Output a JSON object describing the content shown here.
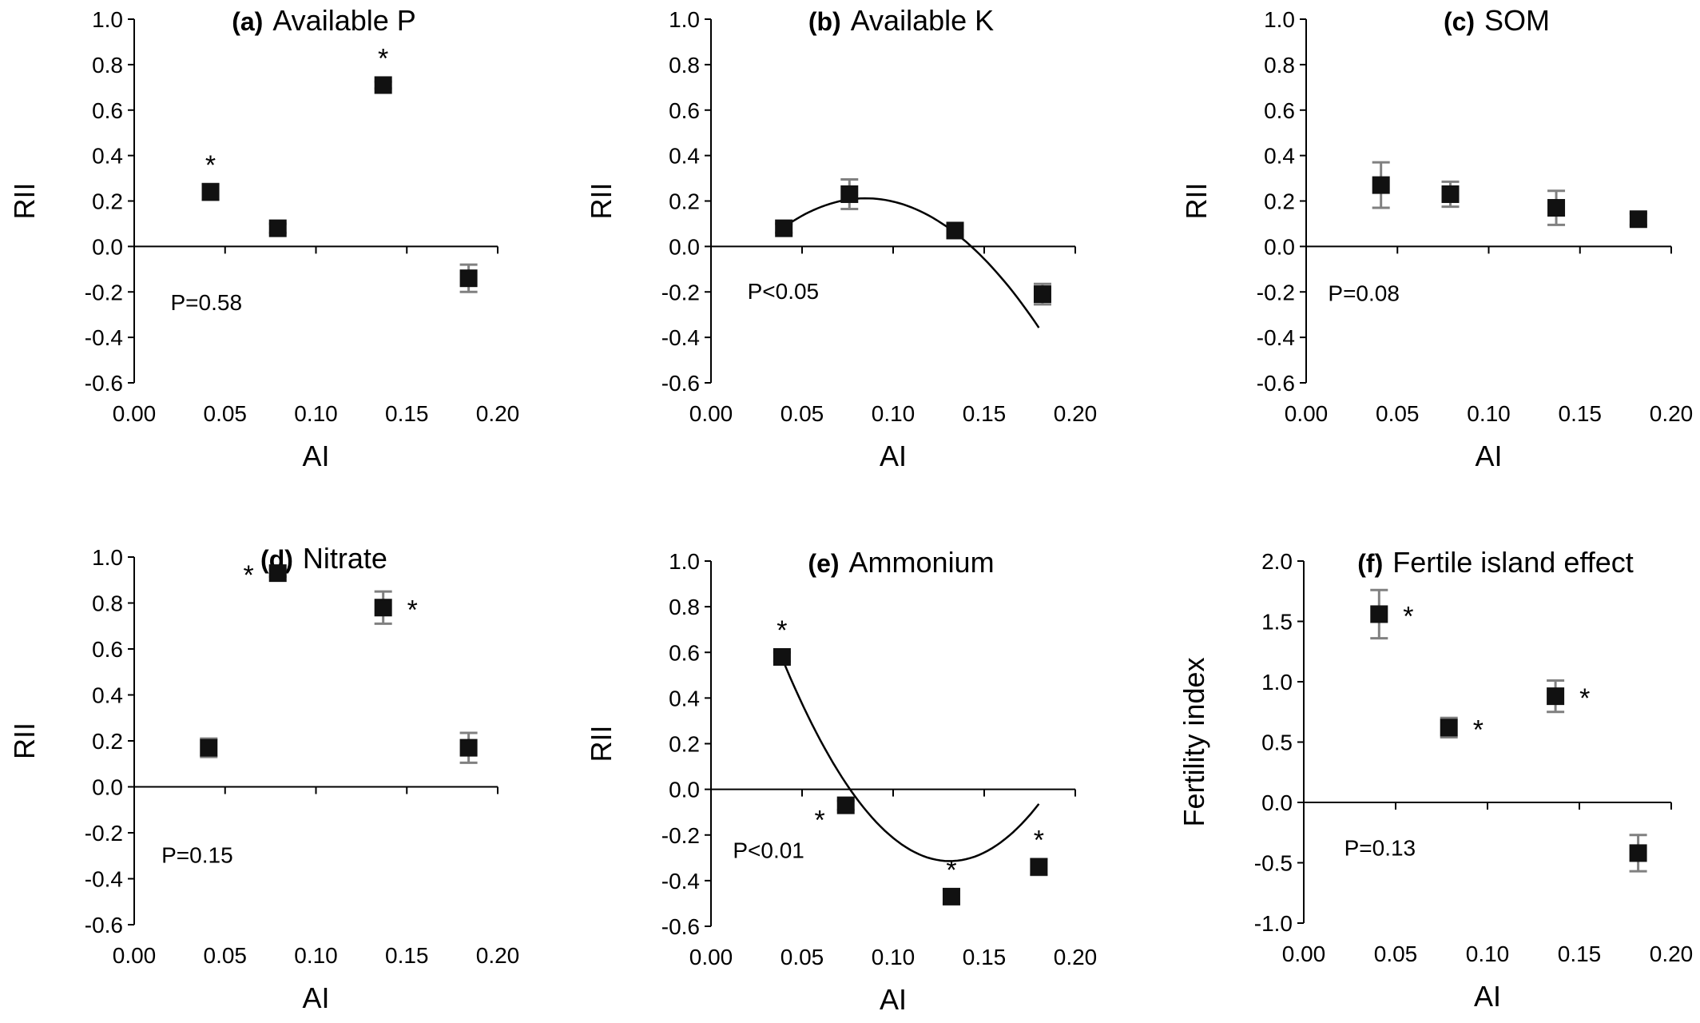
{
  "chart_data": [
    {
      "type": "scatter",
      "title_id": "(a)",
      "title": "Available P",
      "xlabel": "AI",
      "ylabel": "RII",
      "xlim": [
        0,
        0.2
      ],
      "ylim": [
        -0.6,
        1.0
      ],
      "xticks": [
        "0.00",
        "0.05",
        "0.10",
        "0.15",
        "0.20"
      ],
      "yticks": [
        "-0.6",
        "-0.4",
        "-0.2",
        "0.0",
        "0.2",
        "0.4",
        "0.6",
        "0.8",
        "1.0"
      ],
      "points": [
        {
          "x": 0.042,
          "y": 0.24,
          "err": 0.035,
          "star": "*",
          "star_pos": "above"
        },
        {
          "x": 0.079,
          "y": 0.08,
          "err": 0.02,
          "star": "",
          "star_pos": ""
        },
        {
          "x": 0.137,
          "y": 0.71,
          "err": 0.015,
          "star": "*",
          "star_pos": "above"
        },
        {
          "x": 0.184,
          "y": -0.14,
          "err": 0.06,
          "star": "",
          "star_pos": ""
        }
      ],
      "fit": null,
      "p_text": "P=0.58",
      "p_pos": [
        0.02,
        -0.28
      ]
    },
    {
      "type": "scatter",
      "title_id": "(b)",
      "title": "Available K",
      "xlabel": "AI",
      "ylabel": "RII",
      "xlim": [
        0,
        0.2
      ],
      "ylim": [
        -0.6,
        1.0
      ],
      "xticks": [
        "0.00",
        "0.05",
        "0.10",
        "0.15",
        "0.20"
      ],
      "yticks": [
        "-0.6",
        "-0.4",
        "-0.2",
        "0.0",
        "0.2",
        "0.4",
        "0.6",
        "0.8",
        "1.0"
      ],
      "points": [
        {
          "x": 0.04,
          "y": 0.08,
          "err": 0.02,
          "star": "",
          "star_pos": ""
        },
        {
          "x": 0.076,
          "y": 0.23,
          "err": 0.065,
          "star": "",
          "star_pos": ""
        },
        {
          "x": 0.134,
          "y": 0.07,
          "err": 0.02,
          "star": "",
          "star_pos": ""
        },
        {
          "x": 0.182,
          "y": -0.21,
          "err": 0.045,
          "star": "",
          "star_pos": ""
        }
      ],
      "fit": {
        "x_from": 0.04,
        "x_to": 0.18,
        "coef": [
          -0.2425,
          10.7,
          -63.0
        ]
      },
      "p_text": "P<0.05",
      "p_pos": [
        0.02,
        -0.23
      ]
    },
    {
      "type": "scatter",
      "title_id": "(c)",
      "title": "SOM",
      "xlabel": "AI",
      "ylabel": "RII",
      "xlim": [
        0,
        0.2
      ],
      "ylim": [
        -0.6,
        1.0
      ],
      "xticks": [
        "0.00",
        "0.05",
        "0.10",
        "0.15",
        "0.20"
      ],
      "yticks": [
        "-0.6",
        "-0.4",
        "-0.2",
        "0.0",
        "0.2",
        "0.4",
        "0.6",
        "0.8",
        "1.0"
      ],
      "points": [
        {
          "x": 0.041,
          "y": 0.27,
          "err": 0.1,
          "star": "",
          "star_pos": ""
        },
        {
          "x": 0.079,
          "y": 0.23,
          "err": 0.055,
          "star": "",
          "star_pos": ""
        },
        {
          "x": 0.137,
          "y": 0.17,
          "err": 0.075,
          "star": "",
          "star_pos": ""
        },
        {
          "x": 0.182,
          "y": 0.12,
          "err": 0.025,
          "star": "",
          "star_pos": ""
        }
      ],
      "fit": null,
      "p_text": "P=0.08",
      "p_pos": [
        0.012,
        -0.24
      ]
    },
    {
      "type": "scatter",
      "title_id": "(d)",
      "title": "Nitrate",
      "xlabel": "AI",
      "ylabel": "RII",
      "xlim": [
        0,
        0.2
      ],
      "ylim": [
        -0.6,
        1.0
      ],
      "xticks": [
        "0.00",
        "0.05",
        "0.10",
        "0.15",
        "0.20"
      ],
      "yticks": [
        "-0.6",
        "-0.4",
        "-0.2",
        "0.0",
        "0.2",
        "0.4",
        "0.6",
        "0.8",
        "1.0"
      ],
      "points": [
        {
          "x": 0.041,
          "y": 0.17,
          "err": 0.04,
          "star": "",
          "star_pos": ""
        },
        {
          "x": 0.079,
          "y": 0.93,
          "err": 0.015,
          "star": "*",
          "star_pos": "left"
        },
        {
          "x": 0.137,
          "y": 0.78,
          "err": 0.07,
          "star": "*",
          "star_pos": "right"
        },
        {
          "x": 0.184,
          "y": 0.17,
          "err": 0.065,
          "star": "",
          "star_pos": ""
        }
      ],
      "fit": null,
      "p_text": "P=0.15",
      "p_pos": [
        0.015,
        -0.33
      ]
    },
    {
      "type": "scatter",
      "title_id": "(e)",
      "title": "Ammonium",
      "xlabel": "AI",
      "ylabel": "RII",
      "xlim": [
        0,
        0.2
      ],
      "ylim": [
        -0.6,
        1.0
      ],
      "xticks": [
        "0.00",
        "0.05",
        "0.10",
        "0.15",
        "0.20"
      ],
      "yticks": [
        "-0.6",
        "-0.4",
        "-0.2",
        "0.0",
        "0.2",
        "0.4",
        "0.6",
        "0.8",
        "1.0"
      ],
      "points": [
        {
          "x": 0.039,
          "y": 0.58,
          "err": 0.02,
          "star": "*",
          "star_pos": "above"
        },
        {
          "x": 0.074,
          "y": -0.07,
          "err": 0.02,
          "star": "*",
          "star_pos": "below-left"
        },
        {
          "x": 0.132,
          "y": -0.47,
          "err": 0.03,
          "star": "*",
          "star_pos": "above"
        },
        {
          "x": 0.18,
          "y": -0.34,
          "err": 0.035,
          "star": "*",
          "star_pos": "above"
        }
      ],
      "fit": {
        "x_from": 0.039,
        "x_to": 0.18,
        "coef": [
          1.487,
          -27.48,
          104.8
        ]
      },
      "p_text": "P<0.01",
      "p_pos": [
        0.012,
        -0.3
      ]
    },
    {
      "type": "scatter",
      "title_id": "(f)",
      "title": "Fertile island effect",
      "xlabel": "AI",
      "ylabel": "Fertility index",
      "xlim": [
        0,
        0.2
      ],
      "ylim": [
        -1.0,
        2.0
      ],
      "xticks": [
        "0.00",
        "0.05",
        "0.10",
        "0.15",
        "0.20"
      ],
      "yticks": [
        "-1.0",
        "-0.5",
        "0.0",
        "0.5",
        "1.0",
        "1.5",
        "2.0"
      ],
      "points": [
        {
          "x": 0.041,
          "y": 1.56,
          "err": 0.2,
          "star": "*",
          "star_pos": "right"
        },
        {
          "x": 0.079,
          "y": 0.62,
          "err": 0.08,
          "star": "*",
          "star_pos": "right"
        },
        {
          "x": 0.137,
          "y": 0.88,
          "err": 0.13,
          "star": "*",
          "star_pos": "right"
        },
        {
          "x": 0.182,
          "y": -0.42,
          "err": 0.15,
          "star": "",
          "star_pos": ""
        }
      ],
      "fit": null,
      "p_text": "P=0.13",
      "p_pos": [
        0.022,
        -0.44
      ]
    }
  ]
}
